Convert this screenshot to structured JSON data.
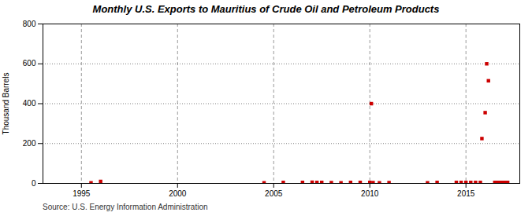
{
  "chart_data": {
    "type": "scatter",
    "title": "Monthly U.S. Exports to Mauritius of Crude Oil and Petroleum Products",
    "ylabel": "Thousand Barrels",
    "annotations": [
      "Source: U.S. Energy Information Administration"
    ],
    "x": [
      1995.5,
      1996.0,
      2004.5,
      2005.5,
      2006.5,
      2007.0,
      2007.25,
      2007.5,
      2008.0,
      2008.5,
      2009.0,
      2009.5,
      2010.0,
      2010.08,
      2010.17,
      2010.5,
      2011.0,
      2013.0,
      2013.5,
      2014.5,
      2014.75,
      2015.0,
      2015.25,
      2015.5,
      2015.75,
      2015.83,
      2016.0,
      2016.08,
      2016.17,
      2016.5,
      2016.67,
      2016.83,
      2017.0,
      2017.17
    ],
    "values": [
      3,
      10,
      3,
      5,
      5,
      6,
      5,
      5,
      4,
      3,
      5,
      5,
      5,
      400,
      4,
      3,
      4,
      3,
      5,
      5,
      5,
      5,
      5,
      5,
      5,
      225,
      355,
      600,
      515,
      5,
      5,
      5,
      5,
      5
    ],
    "color": "#cc0000",
    "marker": "square",
    "xlim": [
      1993.0,
      2017.8
    ],
    "ylim": [
      0,
      800
    ],
    "xticks": [
      1995,
      2000,
      2005,
      2010,
      2015
    ],
    "yticks": [
      0,
      200,
      400,
      600,
      800
    ],
    "grid": true
  }
}
